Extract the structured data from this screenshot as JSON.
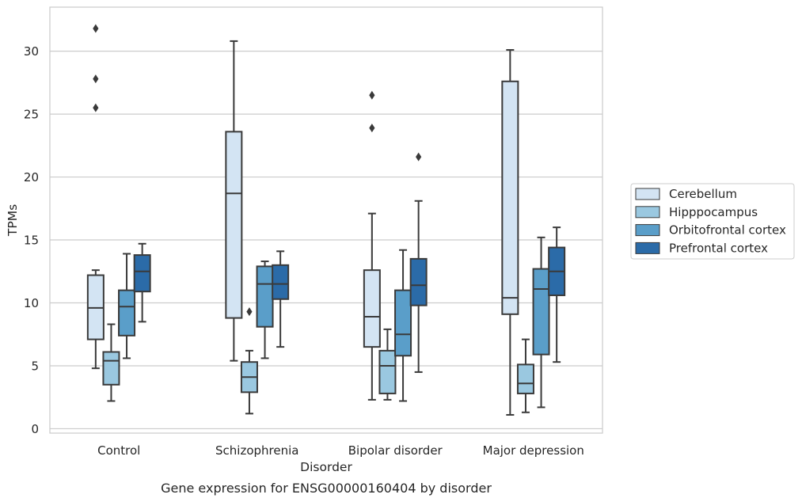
{
  "chart_data": {
    "type": "box",
    "title": "Gene expression for ENSG00000160404 by disorder",
    "xlabel": "Disorder",
    "ylabel": "TPMs",
    "ylim": [
      -0.35,
      33.5
    ],
    "yticks": [
      0,
      5,
      10,
      15,
      20,
      25,
      30
    ],
    "grid": "horizontal",
    "legend_position": "right",
    "categories": [
      "Control",
      "Schizophrenia",
      "Bipolar disorder",
      "Major depression"
    ],
    "series": [
      {
        "name": "Cerebellum",
        "color": "#d3e4f3",
        "boxes": [
          {
            "whisker_low": 4.8,
            "q1": 7.1,
            "median": 9.6,
            "q3": 12.2,
            "whisker_high": 12.6,
            "outliers": [
              25.5,
              27.8,
              31.8
            ]
          },
          {
            "whisker_low": 5.4,
            "q1": 8.8,
            "median": 18.7,
            "q3": 23.6,
            "whisker_high": 30.8,
            "outliers": []
          },
          {
            "whisker_low": 2.3,
            "q1": 6.5,
            "median": 8.9,
            "q3": 12.6,
            "whisker_high": 17.1,
            "outliers": [
              23.9,
              26.5
            ]
          },
          {
            "whisker_low": 1.1,
            "q1": 9.1,
            "median": 10.4,
            "q3": 27.6,
            "whisker_high": 30.1,
            "outliers": []
          }
        ]
      },
      {
        "name": "Hipppocampus",
        "color": "#9ac8e0",
        "boxes": [
          {
            "whisker_low": 2.2,
            "q1": 3.5,
            "median": 5.4,
            "q3": 6.1,
            "whisker_high": 8.3,
            "outliers": []
          },
          {
            "whisker_low": 1.2,
            "q1": 2.9,
            "median": 4.1,
            "q3": 5.3,
            "whisker_high": 6.2,
            "outliers": [
              9.3
            ]
          },
          {
            "whisker_low": 2.3,
            "q1": 2.8,
            "median": 5.0,
            "q3": 6.2,
            "whisker_high": 7.9,
            "outliers": []
          },
          {
            "whisker_low": 1.3,
            "q1": 2.8,
            "median": 3.6,
            "q3": 5.1,
            "whisker_high": 7.1,
            "outliers": []
          }
        ]
      },
      {
        "name": "Orbitofrontal cortex",
        "color": "#5a9ec9",
        "boxes": [
          {
            "whisker_low": 5.6,
            "q1": 7.4,
            "median": 9.7,
            "q3": 11.0,
            "whisker_high": 13.9,
            "outliers": []
          },
          {
            "whisker_low": 5.6,
            "q1": 8.1,
            "median": 11.5,
            "q3": 12.9,
            "whisker_high": 13.3,
            "outliers": []
          },
          {
            "whisker_low": 2.2,
            "q1": 5.8,
            "median": 7.5,
            "q3": 11.0,
            "whisker_high": 14.2,
            "outliers": []
          },
          {
            "whisker_low": 1.7,
            "q1": 5.9,
            "median": 11.1,
            "q3": 12.7,
            "whisker_high": 15.2,
            "outliers": []
          }
        ]
      },
      {
        "name": "Prefrontal cortex",
        "color": "#2b6ba8",
        "boxes": [
          {
            "whisker_low": 8.5,
            "q1": 10.9,
            "median": 12.5,
            "q3": 13.8,
            "whisker_high": 14.7,
            "outliers": []
          },
          {
            "whisker_low": 6.5,
            "q1": 10.3,
            "median": 11.5,
            "q3": 13.0,
            "whisker_high": 14.1,
            "outliers": []
          },
          {
            "whisker_low": 4.5,
            "q1": 9.8,
            "median": 11.4,
            "q3": 13.5,
            "whisker_high": 18.1,
            "outliers": [
              21.6
            ]
          },
          {
            "whisker_low": 5.3,
            "q1": 10.6,
            "median": 12.5,
            "q3": 14.4,
            "whisker_high": 16.0,
            "outliers": []
          }
        ]
      }
    ]
  }
}
